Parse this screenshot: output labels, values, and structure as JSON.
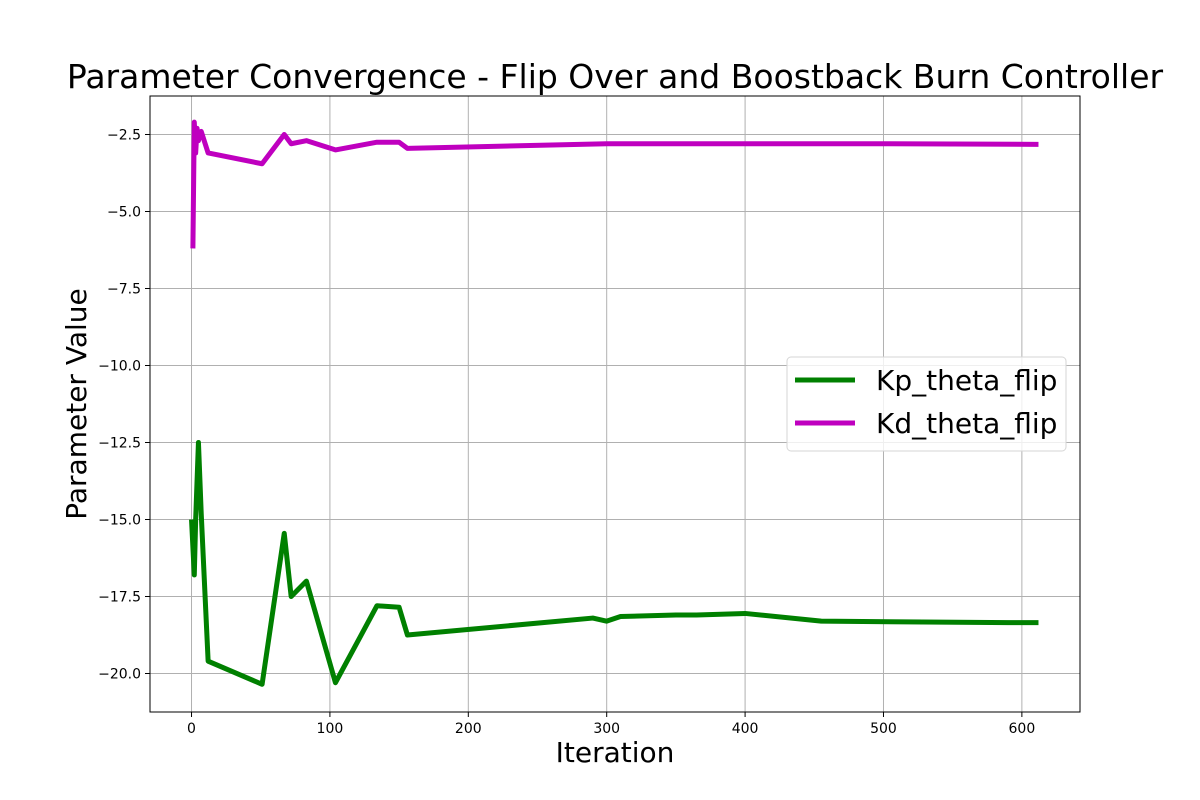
{
  "chart_data": {
    "type": "line",
    "title": "Parameter Convergence - Flip Over and Boostback Burn Controller",
    "xlabel": "Iteration",
    "ylabel": "Parameter Value",
    "xlim": [
      -30,
      642
    ],
    "ylim": [
      -21.25,
      -1.25
    ],
    "xticks": [
      0,
      100,
      200,
      300,
      400,
      500,
      600
    ],
    "xtick_labels": [
      "0",
      "100",
      "200",
      "300",
      "400",
      "500",
      "600"
    ],
    "yticks": [
      -20.0,
      -17.5,
      -15.0,
      -12.5,
      -10.0,
      -7.5,
      -5.0,
      -2.5
    ],
    "ytick_labels": [
      "−20.0",
      "−17.5",
      "−15.0",
      "−12.5",
      "−10.0",
      "−7.5",
      "−5.0",
      "−2.5"
    ],
    "grid": true,
    "legend_position": "center-right",
    "series": [
      {
        "name": "Kp_theta_flip",
        "color": "#008000",
        "x": [
          0,
          2,
          3,
          5,
          7,
          12,
          51,
          67,
          72,
          83,
          104,
          134,
          150,
          156,
          290,
          300,
          310,
          350,
          365,
          400,
          455,
          590,
          612
        ],
        "y": [
          -15.0,
          -16.8,
          -15.0,
          -12.5,
          -14.8,
          -19.6,
          -20.35,
          -15.45,
          -17.5,
          -17.0,
          -20.3,
          -17.8,
          -17.85,
          -18.75,
          -18.2,
          -18.3,
          -18.15,
          -18.1,
          -18.1,
          -18.05,
          -18.3,
          -18.35,
          -18.35
        ]
      },
      {
        "name": "Kd_theta_flip",
        "color": "#bf00bf",
        "x": [
          1,
          2,
          3,
          4,
          5,
          7,
          12,
          51,
          67,
          72,
          83,
          104,
          134,
          150,
          156,
          300,
          400,
          500,
          612
        ],
        "y": [
          -6.2,
          -2.1,
          -3.1,
          -2.3,
          -2.7,
          -2.4,
          -3.1,
          -3.45,
          -2.5,
          -2.8,
          -2.7,
          -3.0,
          -2.75,
          -2.75,
          -2.95,
          -2.8,
          -2.8,
          -2.8,
          -2.82
        ]
      }
    ]
  }
}
